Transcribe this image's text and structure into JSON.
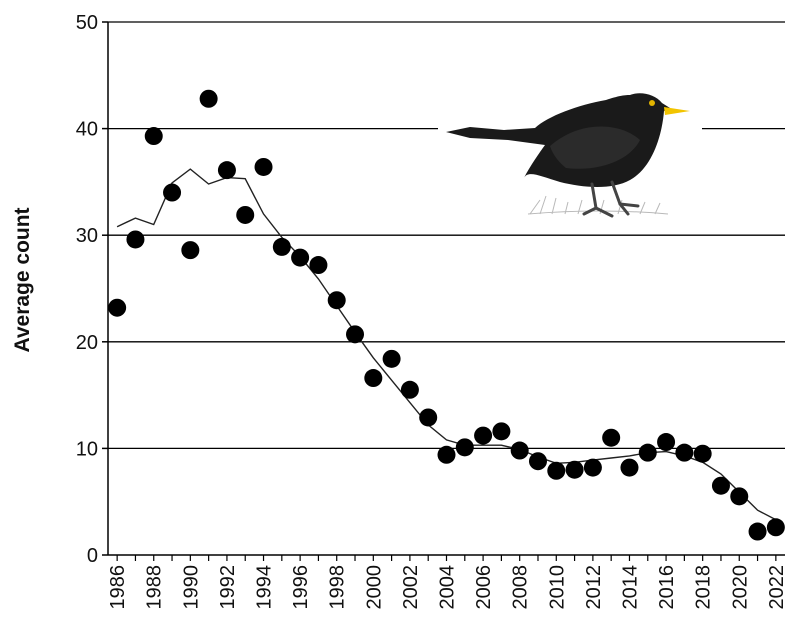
{
  "chart_data": {
    "type": "scatter",
    "title": "",
    "xlabel": "",
    "ylabel": "Average count",
    "xlim": [
      1985.5,
      2022.5
    ],
    "ylim": [
      0,
      50
    ],
    "yticks": [
      0,
      10,
      20,
      30,
      40,
      50
    ],
    "xticks": [
      1986,
      1988,
      1990,
      1992,
      1994,
      1996,
      1998,
      2000,
      2002,
      2004,
      2006,
      2008,
      2010,
      2012,
      2014,
      2016,
      2018,
      2020,
      2022
    ],
    "grid": "horizontal",
    "series": [
      {
        "kind": "points",
        "x": [
          1986,
          1987,
          1988,
          1989,
          1990,
          1991,
          1992,
          1993,
          1994,
          1995,
          1996,
          1997,
          1998,
          1999,
          2000,
          2001,
          2002,
          2003,
          2004,
          2005,
          2006,
          2007,
          2008,
          2009,
          2010,
          2011,
          2012,
          2013,
          2014,
          2015,
          2016,
          2017,
          2018,
          2019,
          2020,
          2021,
          2022
        ],
        "y": [
          23.2,
          29.6,
          39.3,
          34.0,
          28.6,
          42.8,
          36.1,
          31.9,
          36.4,
          28.9,
          27.9,
          27.2,
          23.9,
          20.7,
          16.6,
          18.4,
          15.5,
          12.9,
          9.4,
          10.1,
          11.2,
          11.6,
          9.8,
          8.8,
          7.9,
          8.0,
          8.2,
          11.0,
          8.2,
          9.6,
          10.6,
          9.6,
          9.5,
          6.5,
          5.5,
          2.2,
          2.6
        ]
      },
      {
        "kind": "trend",
        "x": [
          1986,
          1987,
          1988,
          1989,
          1990,
          1991,
          1992,
          1993,
          1994,
          1995,
          1996,
          1997,
          1998,
          1999,
          2000,
          2001,
          2002,
          2003,
          2004,
          2005,
          2006,
          2007,
          2008,
          2009,
          2010,
          2011,
          2012,
          2013,
          2014,
          2015,
          2016,
          2017,
          2018,
          2019,
          2020,
          2021,
          2022
        ],
        "y": [
          30.8,
          31.6,
          31.0,
          34.9,
          36.2,
          34.8,
          35.4,
          35.3,
          32.0,
          29.8,
          28.0,
          25.9,
          23.4,
          20.9,
          18.5,
          16.4,
          14.3,
          12.2,
          10.8,
          10.3,
          10.3,
          10.3,
          9.9,
          9.2,
          8.6,
          8.7,
          8.9,
          9.1,
          9.3,
          9.6,
          9.7,
          9.3,
          8.7,
          7.6,
          5.9,
          4.2,
          3.3
        ]
      }
    ],
    "colors": {
      "points": "#000000",
      "trend": "#222222",
      "grid": "#000000",
      "bird_body": "#1a1a1a",
      "bird_beak": "#f2c400"
    }
  },
  "illustration": {
    "icon": "blackbird-illustration"
  }
}
